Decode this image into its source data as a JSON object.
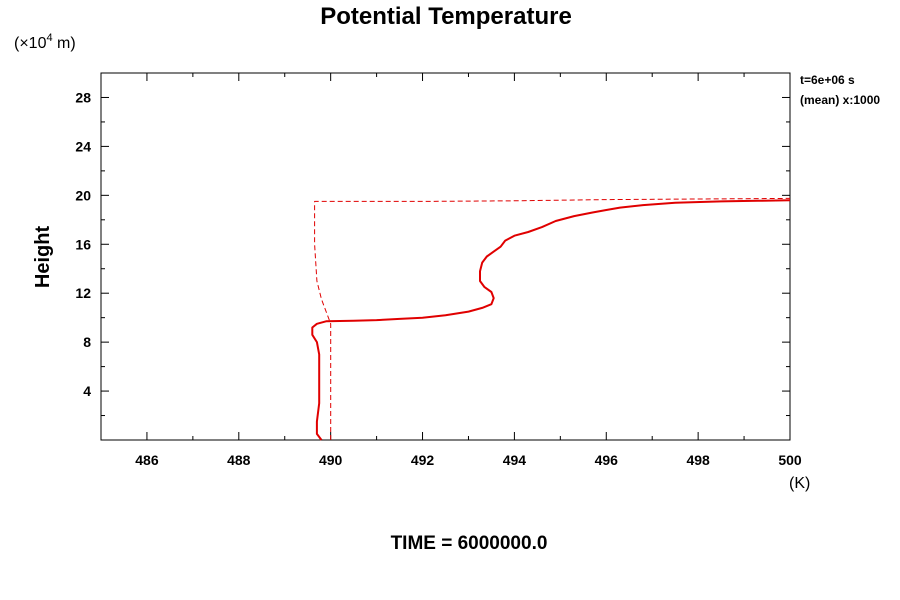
{
  "chart_data": {
    "type": "line",
    "title": "Potential Temperature",
    "xlabel": "",
    "xunit": "(K)",
    "ylabel": "Height",
    "yunit_base": "(×10",
    "yunit_exp": "4",
    "yunit_tail": " m)",
    "xlim": [
      485,
      500
    ],
    "ylim": [
      0,
      30
    ],
    "xticks": [
      486,
      488,
      490,
      492,
      494,
      496,
      498,
      500
    ],
    "yticks": [
      4,
      8,
      12,
      16,
      20,
      24,
      28
    ],
    "annotation_line1": "t=6e+06 s",
    "annotation_line2": "(mean) x:1000",
    "footer": "TIME = 6000000.0",
    "grid": false,
    "series": [
      {
        "style": "solid",
        "color": "#e00000",
        "points": [
          [
            489.8,
            0.0
          ],
          [
            489.7,
            0.5
          ],
          [
            489.7,
            1.5
          ],
          [
            489.75,
            3.0
          ],
          [
            489.75,
            5.0
          ],
          [
            489.75,
            7.0
          ],
          [
            489.7,
            8.0
          ],
          [
            489.6,
            8.6
          ],
          [
            489.6,
            9.2
          ],
          [
            489.7,
            9.5
          ],
          [
            489.9,
            9.7
          ],
          [
            490.5,
            9.75
          ],
          [
            491.0,
            9.8
          ],
          [
            491.5,
            9.9
          ],
          [
            492.0,
            10.0
          ],
          [
            492.5,
            10.2
          ],
          [
            493.0,
            10.5
          ],
          [
            493.3,
            10.8
          ],
          [
            493.5,
            11.1
          ],
          [
            493.55,
            11.6
          ],
          [
            493.5,
            12.1
          ],
          [
            493.35,
            12.5
          ],
          [
            493.25,
            13.0
          ],
          [
            493.25,
            13.8
          ],
          [
            493.3,
            14.5
          ],
          [
            493.4,
            15.0
          ],
          [
            493.55,
            15.4
          ],
          [
            493.7,
            15.8
          ],
          [
            493.8,
            16.3
          ],
          [
            494.0,
            16.7
          ],
          [
            494.3,
            17.0
          ],
          [
            494.6,
            17.4
          ],
          [
            494.9,
            17.9
          ],
          [
            495.3,
            18.3
          ],
          [
            495.7,
            18.6
          ],
          [
            496.0,
            18.8
          ],
          [
            496.3,
            19.0
          ],
          [
            496.8,
            19.2
          ],
          [
            497.5,
            19.4
          ],
          [
            498.5,
            19.5
          ],
          [
            499.3,
            19.55
          ],
          [
            500.0,
            19.6
          ]
        ]
      },
      {
        "style": "dashed",
        "color": "#e00000",
        "points": [
          [
            490.0,
            0.0
          ],
          [
            490.0,
            9.5
          ],
          [
            489.8,
            11.5
          ],
          [
            489.7,
            13.0
          ],
          [
            489.65,
            16.0
          ],
          [
            489.65,
            19.5
          ],
          [
            492.0,
            19.5
          ],
          [
            494.0,
            19.55
          ],
          [
            496.0,
            19.65
          ],
          [
            498.0,
            19.7
          ],
          [
            500.0,
            19.75
          ]
        ]
      }
    ]
  }
}
